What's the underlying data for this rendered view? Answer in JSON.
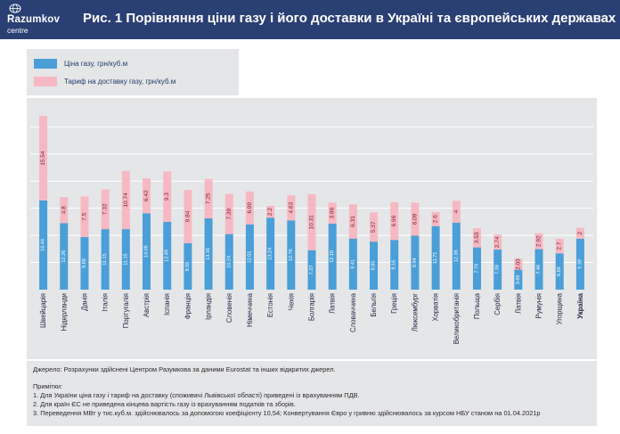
{
  "header": {
    "logo_name": "Razumkov",
    "logo_sub": "centre",
    "title": "Рис. 1 Порівняння ціни газу і його доставки в Україні та європейських державах"
  },
  "colors": {
    "header_bg": "#2a3f73",
    "gas_price": "#4a9fd8",
    "delivery": "#f6b9c4",
    "panel": "#e5e6e8"
  },
  "chart_data": {
    "type": "bar",
    "stacked": true,
    "legend_position": "top-left",
    "categories": [
      "Швейцарія",
      "Нідерланди",
      "Данія",
      "Італія",
      "Португалія",
      "Австрія",
      "Іспанія",
      "Франція",
      "Ірландія",
      "Словенія",
      "Німеччина",
      "Естонія",
      "Чехія",
      "Болгарія",
      "Латвія",
      "Словаччина",
      "Бельгія",
      "Греція",
      "Люксембург",
      "Хорватія",
      "Великобританія",
      "Польща",
      "Сербія",
      "Латвія",
      "Румунія",
      "Угорщина",
      "Україна"
    ],
    "highlight_category": "Україна",
    "series": [
      {
        "name": "Ціна газу, грн/куб.м",
        "values": [
          16.44,
          12.26,
          9.68,
          11.15,
          11.15,
          14.08,
          12.49,
          8.55,
          13.16,
          10.24,
          12.01,
          13.24,
          12.76,
          7.27,
          12.18,
          9.41,
          8.85,
          9.16,
          9.94,
          11.71,
          12.36,
          7.79,
          7.38,
          3.66,
          7.46,
          6.69,
          9.39
        ]
      },
      {
        "name": "Тариф на доставку газу, грн/куб.м",
        "values": [
          15.54,
          4.8,
          7.5,
          7.32,
          10.74,
          6.42,
          9.3,
          9.84,
          7.25,
          7.39,
          6.09,
          2.2,
          4.63,
          10.31,
          3.86,
          6.31,
          5.37,
          6.96,
          6.09,
          2.6,
          4,
          3.53,
          2.74,
          2.03,
          2.92,
          2.7,
          2.0
        ]
      }
    ],
    "ylim": [
      0,
      34
    ],
    "grid": true
  },
  "notes": {
    "source": "Джерело: Розрахунки здійснені Центром Разумкова за даними Eurostat та інших відкритих джерел.",
    "heading": "Примітки:",
    "items": [
      "1. Для України ціна газу  і тариф на доставку (споживачі Львівської області) приведені із врахуванням ПДВ.",
      "2. Для країн ЄС не приведена кінцева вартість газу із врахуванням податків та зборів.",
      "3. Переведення МВт у тис.куб.м. здійснювалось за допомогою коефіцієнту 10,54;  Конвертування Євро у гривню здійснювалось за курсом НБУ станом на 01.04.2021р"
    ]
  }
}
